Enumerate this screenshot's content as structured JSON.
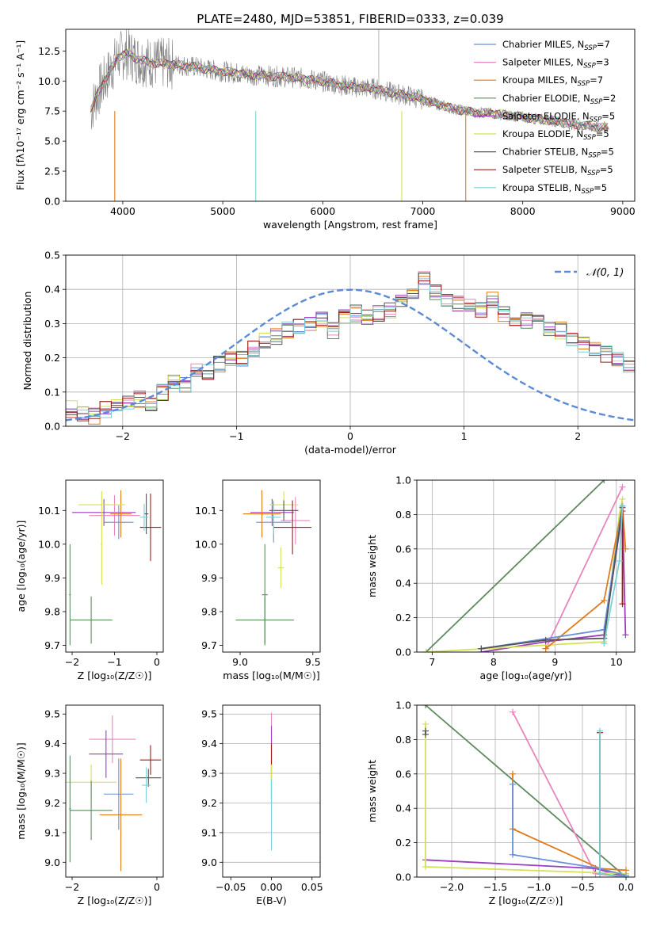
{
  "chart_data": [
    {
      "id": "spectrum",
      "type": "line",
      "title": "PLATE=2480, MJD=53851, FIBERID=0333, z=0.039",
      "xlabel": "wavelength [Angstrom, rest frame]",
      "ylabel": "Flux [fλ10⁻¹⁷ erg cm⁻² s⁻¹ A⁻¹]",
      "xlim": [
        3430,
        9120
      ],
      "ylim": [
        0,
        14.3
      ],
      "xticks": [
        4000,
        5000,
        6000,
        7000,
        8000,
        9000
      ],
      "yticks": [
        0.0,
        2.5,
        5.0,
        7.5,
        10.0,
        12.5
      ],
      "data_series": {
        "name": "data",
        "color": "#808080",
        "x": [
          3680,
          3750,
          3850,
          3950,
          4050,
          4150,
          4300,
          4500,
          4700,
          4900,
          5100,
          5300,
          5500,
          5700,
          5900,
          6100,
          6300,
          6500,
          6700,
          6900,
          7100,
          7300,
          7500,
          7700,
          7900,
          8100,
          8300,
          8500,
          8700,
          8860
        ],
        "y": [
          7.5,
          9.0,
          10.5,
          12.0,
          12.3,
          11.8,
          11.5,
          11.4,
          11.2,
          10.9,
          10.7,
          10.5,
          10.4,
          10.3,
          10.1,
          9.8,
          9.5,
          9.4,
          9.0,
          8.7,
          8.2,
          7.7,
          7.4,
          7.3,
          7.1,
          6.9,
          6.7,
          6.4,
          6.2,
          6.1
        ]
      },
      "dips": [
        {
          "x": 3920,
          "y": 0.0,
          "color": "#e07b1a"
        },
        {
          "x": 5330,
          "y": 0.0,
          "color": "#7ad0d8"
        },
        {
          "x": 6790,
          "y": 0.0,
          "color": "#d4e157"
        },
        {
          "x": 7430,
          "y": 0.0,
          "color": "#e07b1a"
        }
      ],
      "spike": {
        "x": 6560,
        "y": 14.3,
        "color": "#808080"
      },
      "series": [
        {
          "name": "Chabrier MILES, N",
          "sub": "SSP",
          "suffix": "=7",
          "color": "#6a8fdc"
        },
        {
          "name": "Salpeter MILES, N",
          "sub": "SSP",
          "suffix": "=3",
          "color": "#e985be"
        },
        {
          "name": "Kroupa MILES, N",
          "sub": "SSP",
          "suffix": "=7",
          "color": "#e07b1a"
        },
        {
          "name": "Chabrier ELODIE, N",
          "sub": "SSP",
          "suffix": "=2",
          "color": "#5d8a5f"
        },
        {
          "name": "Salpeter ELODIE, N",
          "sub": "SSP",
          "suffix": "=5",
          "color": "#9c3cbf"
        },
        {
          "name": "Kroupa ELODIE, N",
          "sub": "SSP",
          "suffix": "=5",
          "color": "#d4e157"
        },
        {
          "name": "Chabrier STELIB, N",
          "sub": "SSP",
          "suffix": "=5",
          "color": "#555555"
        },
        {
          "name": "Salpeter STELIB, N",
          "sub": "SSP",
          "suffix": "=5",
          "color": "#a01c1c"
        },
        {
          "name": "Kroupa STELIB, N",
          "sub": "SSP",
          "suffix": "=5",
          "color": "#7ad0d8"
        }
      ],
      "legend": "upper right"
    },
    {
      "id": "residuals",
      "type": "histogram",
      "xlabel": "(data-model)/error",
      "ylabel": "Normed distribution",
      "xlim": [
        -2.5,
        2.5
      ],
      "ylim": [
        0,
        0.5
      ],
      "xticks": [
        -2,
        -1,
        0,
        1,
        2
      ],
      "yticks": [
        0.0,
        0.1,
        0.2,
        0.3,
        0.4,
        0.5
      ],
      "grid": true,
      "bin_width": 0.1,
      "bin_start": -2.5,
      "heights": [
        0.05,
        0.04,
        0.03,
        0.05,
        0.06,
        0.07,
        0.08,
        0.07,
        0.1,
        0.13,
        0.12,
        0.16,
        0.16,
        0.18,
        0.2,
        0.2,
        0.23,
        0.25,
        0.26,
        0.28,
        0.29,
        0.3,
        0.31,
        0.28,
        0.32,
        0.33,
        0.32,
        0.33,
        0.34,
        0.36,
        0.38,
        0.43,
        0.39,
        0.37,
        0.36,
        0.35,
        0.34,
        0.37,
        0.33,
        0.31,
        0.31,
        0.3,
        0.28,
        0.28,
        0.26,
        0.24,
        0.23,
        0.21,
        0.2,
        0.18,
        0.16,
        0.15,
        0.13,
        0.12,
        0.11,
        0.1,
        0.09,
        0.08,
        0.07,
        0.06,
        0.05,
        0.05,
        0.04,
        0.04,
        0.04,
        0.05,
        0.04,
        0.04,
        0.03,
        0.03
      ],
      "gaussian": {
        "label": "𝒩(0, 1)",
        "mu": 0,
        "sigma": 1,
        "color": "#5b8bd8"
      },
      "legend": "upper right"
    },
    {
      "id": "age-vs-Z",
      "type": "errorbar",
      "xlabel": "Z [log₁₀(Z/Z☉)]",
      "ylabel": "age  [log₁₀(age/yr)]",
      "xlim": [
        -2.15,
        0.15
      ],
      "ylim": [
        9.68,
        10.19
      ],
      "xticks": [
        -2,
        -1,
        0
      ],
      "yticks": [
        9.7,
        9.8,
        9.9,
        10.0,
        10.1
      ],
      "points": [
        {
          "x": -1.25,
          "y": 10.094,
          "xerr": 0.75,
          "yerr": 0.04,
          "color": "#9c3cbf"
        },
        {
          "x": -1.0,
          "y": 10.085,
          "xerr": 0.6,
          "yerr": 0.06,
          "color": "#e985be"
        },
        {
          "x": -0.85,
          "y": 10.09,
          "xerr": 0.25,
          "yerr": 0.07,
          "color": "#e07b1a"
        },
        {
          "x": -1.3,
          "y": 10.117,
          "xerr": 0.55,
          "yerr": 0.04,
          "color": "#d4e157"
        },
        {
          "x": -1.3,
          "y": 10.0,
          "xerr": 0.02,
          "yerr": 0.12,
          "color": "#d4e157"
        },
        {
          "x": -0.9,
          "y": 10.065,
          "xerr": 0.35,
          "yerr": 0.05,
          "color": "#6a8fdc"
        },
        {
          "x": -0.25,
          "y": 10.09,
          "xerr": 0.05,
          "yerr": 0.06,
          "color": "#555555"
        },
        {
          "x": -0.15,
          "y": 10.05,
          "xerr": 0.25,
          "yerr": 0.1,
          "color": "#a01c1c"
        },
        {
          "x": -0.3,
          "y": 10.08,
          "xerr": 0.1,
          "yerr": 0.04,
          "color": "#7ad0d8"
        },
        {
          "x": -1.55,
          "y": 9.775,
          "xerr": 0.5,
          "yerr": 0.07,
          "color": "#5d8a5f"
        },
        {
          "x": -2.05,
          "y": 9.85,
          "xerr": 0.02,
          "yerr": 0.15,
          "color": "#5d8a5f"
        }
      ]
    },
    {
      "id": "age-vs-mass",
      "type": "errorbar",
      "xlabel": "mass [log₁₀(M/M☉)]",
      "xlim": [
        8.88,
        9.55
      ],
      "ylim": [
        9.68,
        10.19
      ],
      "xticks": [
        9.0,
        9.5
      ],
      "yticks": [
        9.7,
        9.8,
        9.9,
        10.0,
        10.1
      ],
      "points": [
        {
          "x": 9.22,
          "y": 10.094,
          "xerr": 0.15,
          "yerr": 0.04,
          "color": "#9c3cbf"
        },
        {
          "x": 9.38,
          "y": 10.07,
          "xerr": 0.1,
          "yerr": 0.07,
          "color": "#e985be"
        },
        {
          "x": 9.15,
          "y": 10.09,
          "xerr": 0.13,
          "yerr": 0.07,
          "color": "#e07b1a"
        },
        {
          "x": 9.3,
          "y": 10.117,
          "xerr": 0.1,
          "yerr": 0.04,
          "color": "#d4e157"
        },
        {
          "x": 9.28,
          "y": 9.93,
          "xerr": 0.02,
          "yerr": 0.06,
          "color": "#d4e157"
        },
        {
          "x": 9.23,
          "y": 10.065,
          "xerr": 0.12,
          "yerr": 0.06,
          "color": "#6a8fdc"
        },
        {
          "x": 9.3,
          "y": 10.1,
          "xerr": 0.1,
          "yerr": 0.03,
          "color": "#555555"
        },
        {
          "x": 9.36,
          "y": 10.05,
          "xerr": 0.13,
          "yerr": 0.08,
          "color": "#a01c1c"
        },
        {
          "x": 9.23,
          "y": 10.08,
          "xerr": 0.05,
          "yerr": 0.05,
          "color": "#7ad0d8"
        },
        {
          "x": 9.17,
          "y": 9.775,
          "xerr": 0.2,
          "yerr": 0.07,
          "color": "#5d8a5f"
        },
        {
          "x": 9.17,
          "y": 9.85,
          "xerr": 0.02,
          "yerr": 0.15,
          "color": "#5d8a5f"
        }
      ]
    },
    {
      "id": "weight-vs-age",
      "type": "line",
      "xlabel": "age  [log₁₀(age/yr)]",
      "ylabel": "mass weight",
      "xlim": [
        6.75,
        10.3
      ],
      "ylim": [
        0,
        1.0
      ],
      "xticks": [
        7,
        8,
        9,
        10
      ],
      "yticks": [
        0.0,
        0.2,
        0.4,
        0.6,
        0.8,
        1.0
      ],
      "grid": true,
      "series": [
        {
          "color": "#5d8a5f",
          "x": [
            6.9,
            9.8
          ],
          "y": [
            0.0,
            1.0
          ]
        },
        {
          "color": "#e985be",
          "x": [
            8.85,
            10.1
          ],
          "y": [
            0.02,
            0.96
          ]
        },
        {
          "color": "#9c3cbf",
          "x": [
            7.8,
            8.85,
            9.8,
            10.1,
            10.15
          ],
          "y": [
            0.0,
            0.06,
            0.1,
            0.82,
            0.1
          ]
        },
        {
          "color": "#d4e157",
          "x": [
            6.9,
            9.8,
            10.05,
            10.1
          ],
          "y": [
            0.0,
            0.06,
            0.8,
            0.89
          ]
        },
        {
          "color": "#e07b1a",
          "x": [
            8.85,
            9.8,
            10.1,
            10.15
          ],
          "y": [
            0.02,
            0.3,
            0.85,
            0.6
          ]
        },
        {
          "color": "#6a8fdc",
          "x": [
            7.8,
            9.8,
            10.1
          ],
          "y": [
            0.02,
            0.13,
            0.85
          ]
        },
        {
          "color": "#555555",
          "x": [
            7.8,
            8.85,
            9.8,
            10.1
          ],
          "y": [
            0.02,
            0.07,
            0.08,
            0.84
          ]
        },
        {
          "color": "#a01c1c",
          "x": [
            10.1,
            10.1
          ],
          "y": [
            0.28,
            0.85
          ]
        },
        {
          "color": "#7ad0d8",
          "x": [
            9.8,
            10.05,
            10.1
          ],
          "y": [
            0.05,
            0.53,
            0.85
          ]
        }
      ]
    },
    {
      "id": "mass-vs-Z",
      "type": "errorbar",
      "xlabel": "Z [log₁₀(Z/Z☉)]",
      "ylabel": "mass [log₁₀(M/M☉)]",
      "xlim": [
        -2.15,
        0.15
      ],
      "ylim": [
        8.95,
        9.53
      ],
      "xticks": [
        -2,
        0
      ],
      "yticks": [
        9.0,
        9.1,
        9.2,
        9.3,
        9.4,
        9.5
      ],
      "points": [
        {
          "x": -1.05,
          "y": 9.415,
          "xerr": 0.55,
          "yerr": 0.08,
          "color": "#e985be"
        },
        {
          "x": -1.2,
          "y": 9.365,
          "xerr": 0.4,
          "yerr": 0.08,
          "color": "#9c3cbf"
        },
        {
          "x": -1.55,
          "y": 9.27,
          "xerr": 0.6,
          "yerr": 0.06,
          "color": "#d4e157"
        },
        {
          "x": -0.9,
          "y": 9.23,
          "xerr": 0.35,
          "yerr": 0.12,
          "color": "#6a8fdc"
        },
        {
          "x": -0.85,
          "y": 9.16,
          "xerr": 0.5,
          "yerr": 0.19,
          "color": "#e07b1a"
        },
        {
          "x": -1.55,
          "y": 9.175,
          "xerr": 0.5,
          "yerr": 0.1,
          "color": "#5d8a5f"
        },
        {
          "x": -2.05,
          "y": 9.18,
          "xerr": 0.02,
          "yerr": 0.18,
          "color": "#5d8a5f"
        },
        {
          "x": -0.15,
          "y": 9.345,
          "xerr": 0.25,
          "yerr": 0.05,
          "color": "#a01c1c"
        },
        {
          "x": -0.2,
          "y": 9.285,
          "xerr": 0.3,
          "yerr": 0.03,
          "color": "#555555"
        },
        {
          "x": -0.25,
          "y": 9.26,
          "xerr": 0.1,
          "yerr": 0.06,
          "color": "#7ad0d8"
        }
      ]
    },
    {
      "id": "mass-vs-EBV",
      "type": "errorbar",
      "xlabel": "E(B-V)",
      "xlim": [
        -0.06,
        0.06
      ],
      "ylim": [
        8.95,
        9.53
      ],
      "xticks": [
        -0.05,
        0.0,
        0.05
      ],
      "yticks": [
        9.0,
        9.1,
        9.2,
        9.3,
        9.4,
        9.5
      ],
      "grid": "y",
      "points": [
        {
          "x": 0.0,
          "y": 9.415,
          "xerr": 0.0,
          "yerr": 0.09,
          "color": "#e985be"
        },
        {
          "x": 0.0,
          "y": 9.37,
          "xerr": 0.0,
          "yerr": 0.09,
          "color": "#9c3cbf"
        },
        {
          "x": 0.0,
          "y": 9.3,
          "xerr": 0.0,
          "yerr": 0.1,
          "color": "#a01c1c"
        },
        {
          "x": 0.0,
          "y": 9.27,
          "xerr": 0.0,
          "yerr": 0.06,
          "color": "#d4e157"
        },
        {
          "x": 0.0,
          "y": 9.16,
          "xerr": 0.0,
          "yerr": 0.12,
          "color": "#7ad0d8"
        }
      ]
    },
    {
      "id": "weight-vs-Z",
      "type": "line",
      "xlabel": "Z [log₁₀(Z/Z☉)]",
      "ylabel": "mass weight",
      "xlim": [
        -2.4,
        0.1
      ],
      "ylim": [
        0,
        1.0
      ],
      "xticks": [
        -2.0,
        -1.5,
        -1.0,
        -0.5,
        0.0
      ],
      "yticks": [
        0.0,
        0.2,
        0.4,
        0.6,
        0.8,
        1.0
      ],
      "grid": true,
      "series": [
        {
          "color": "#5d8a5f",
          "x": [
            -2.3,
            0.0
          ],
          "y": [
            1.0,
            0.0
          ]
        },
        {
          "color": "#e985be",
          "x": [
            -1.3,
            -0.35,
            0.0
          ],
          "y": [
            0.96,
            0.02,
            0.0
          ]
        },
        {
          "color": "#9c3cbf",
          "x": [
            -2.3,
            -0.35,
            0.0
          ],
          "y": [
            0.1,
            0.05,
            0.0
          ]
        },
        {
          "color": "#d4e157",
          "x": [
            -2.3,
            -2.3,
            0.0
          ],
          "y": [
            0.89,
            0.06,
            0.02
          ]
        },
        {
          "color": "#e07b1a",
          "x": [
            -1.3,
            -1.3,
            -0.3,
            0.0
          ],
          "y": [
            0.6,
            0.28,
            0.05,
            0.04
          ]
        },
        {
          "color": "#6a8fdc",
          "x": [
            -1.3,
            -1.3,
            -0.3,
            0.0
          ],
          "y": [
            0.54,
            0.13,
            0.05,
            0.01
          ]
        },
        {
          "color": "#555555",
          "x": [
            -2.3,
            -2.3
          ],
          "y": [
            0.85,
            0.83
          ]
        },
        {
          "color": "#a01c1c",
          "x": [
            -0.3,
            -0.3,
            0.0
          ],
          "y": [
            0.84,
            0.02,
            0.0
          ]
        },
        {
          "color": "#7ad0d8",
          "x": [
            -0.3,
            -0.3,
            0.0
          ],
          "y": [
            0.85,
            0.02,
            0.0
          ]
        }
      ]
    }
  ]
}
